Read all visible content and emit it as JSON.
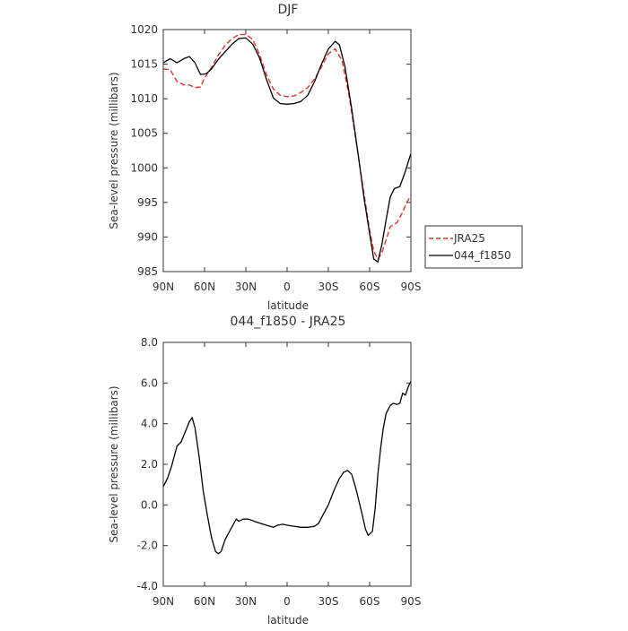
{
  "chart_data": [
    {
      "type": "line",
      "title": "DJF",
      "xlabel": "latitude",
      "ylabel": "Sea-level pressure (millibars)",
      "xlim": [
        -90,
        90
      ],
      "ylim": [
        985,
        1020
      ],
      "x_ticks": [
        -90,
        -60,
        -30,
        0,
        30,
        60,
        90
      ],
      "x_tick_labels": [
        "90N",
        "60N",
        "30N",
        "0",
        "30S",
        "60S",
        "90S"
      ],
      "y_ticks": [
        985,
        990,
        995,
        1000,
        1005,
        1010,
        1015,
        1020
      ],
      "y_tick_labels": [
        "985",
        "990",
        "995",
        "1000",
        "1005",
        "1010",
        "1015",
        "1020"
      ],
      "grid": false,
      "legend_position": "right",
      "series": [
        {
          "name": "JRA25",
          "style": "dashed",
          "color": "#e8312f",
          "points": [
            [
              -90,
              1014.3
            ],
            [
              -85,
              1014.2
            ],
            [
              -80,
              1012.5
            ],
            [
              -75,
              1012.0
            ],
            [
              -71,
              1012.0
            ],
            [
              -67,
              1011.6
            ],
            [
              -63,
              1011.7
            ],
            [
              -60,
              1013.0
            ],
            [
              -55,
              1014.5
            ],
            [
              -50,
              1016.3
            ],
            [
              -45,
              1017.7
            ],
            [
              -40,
              1018.7
            ],
            [
              -35,
              1019.3
            ],
            [
              -30,
              1019.3
            ],
            [
              -25,
              1018.6
            ],
            [
              -20,
              1016.4
            ],
            [
              -15,
              1013.5
            ],
            [
              -10,
              1011.4
            ],
            [
              -5,
              1010.5
            ],
            [
              0,
              1010.3
            ],
            [
              5,
              1010.4
            ],
            [
              10,
              1010.9
            ],
            [
              15,
              1011.6
            ],
            [
              20,
              1012.9
            ],
            [
              25,
              1014.6
            ],
            [
              30,
              1016.5
            ],
            [
              35,
              1017.2
            ],
            [
              40,
              1015.5
            ],
            [
              45,
              1010.5
            ],
            [
              50,
              1004.0
            ],
            [
              55,
              997.5
            ],
            [
              60,
              991.0
            ],
            [
              63,
              988.0
            ],
            [
              66,
              986.8
            ],
            [
              69,
              987.8
            ],
            [
              72,
              989.6
            ],
            [
              75,
              991.5
            ],
            [
              80,
              992.1
            ],
            [
              84,
              993.6
            ],
            [
              87,
              995.0
            ],
            [
              90,
              996.0
            ]
          ]
        },
        {
          "name": "044_f1850",
          "style": "solid",
          "color": "#000000",
          "points": [
            [
              -90,
              1015.2
            ],
            [
              -85,
              1015.8
            ],
            [
              -80,
              1015.2
            ],
            [
              -75,
              1015.8
            ],
            [
              -71,
              1016.1
            ],
            [
              -67,
              1015.2
            ],
            [
              -63,
              1013.5
            ],
            [
              -59,
              1013.6
            ],
            [
              -55,
              1014.3
            ],
            [
              -50,
              1015.7
            ],
            [
              -45,
              1016.8
            ],
            [
              -40,
              1017.9
            ],
            [
              -35,
              1018.7
            ],
            [
              -30,
              1018.8
            ],
            [
              -25,
              1017.9
            ],
            [
              -20,
              1015.9
            ],
            [
              -15,
              1012.8
            ],
            [
              -10,
              1010.1
            ],
            [
              -5,
              1009.3
            ],
            [
              0,
              1009.2
            ],
            [
              5,
              1009.3
            ],
            [
              10,
              1009.6
            ],
            [
              15,
              1010.5
            ],
            [
              20,
              1012.5
            ],
            [
              25,
              1015.0
            ],
            [
              30,
              1017.2
            ],
            [
              35,
              1018.3
            ],
            [
              38,
              1017.8
            ],
            [
              42,
              1014.7
            ],
            [
              47,
              1008.5
            ],
            [
              52,
              1001.5
            ],
            [
              56,
              995.5
            ],
            [
              60,
              990.5
            ],
            [
              63,
              986.8
            ],
            [
              66,
              986.4
            ],
            [
              69,
              989.0
            ],
            [
              72,
              992.5
            ],
            [
              75,
              995.8
            ],
            [
              78,
              997.0
            ],
            [
              82,
              997.3
            ],
            [
              86,
              999.5
            ],
            [
              90,
              1002.1
            ]
          ]
        }
      ]
    },
    {
      "type": "line",
      "title": "044_f1850 - JRA25",
      "xlabel": "latitude",
      "ylabel": "Sea-level pressure (millibars)",
      "xlim": [
        -90,
        90
      ],
      "ylim": [
        -4.0,
        8.0
      ],
      "x_ticks": [
        -90,
        -60,
        -30,
        0,
        30,
        60,
        90
      ],
      "x_tick_labels": [
        "90N",
        "60N",
        "30N",
        "0",
        "30S",
        "60S",
        "90S"
      ],
      "y_ticks": [
        -4.0,
        -2.0,
        0.0,
        2.0,
        4.0,
        6.0,
        8.0
      ],
      "y_tick_labels": [
        "-4.0",
        "-2.0",
        "0.0",
        "2.0",
        "4.0",
        "6.0",
        "8.0"
      ],
      "grid": false,
      "series": [
        {
          "style": "solid",
          "color": "#000000",
          "points": [
            [
              -90,
              0.9
            ],
            [
              -87,
              1.3
            ],
            [
              -84,
              1.9
            ],
            [
              -80,
              2.9
            ],
            [
              -77,
              3.1
            ],
            [
              -74,
              3.6
            ],
            [
              -71,
              4.1
            ],
            [
              -69,
              4.3
            ],
            [
              -67,
              3.8
            ],
            [
              -64,
              2.4
            ],
            [
              -61,
              0.7
            ],
            [
              -58,
              -0.5
            ],
            [
              -55,
              -1.6
            ],
            [
              -52,
              -2.3
            ],
            [
              -50,
              -2.4
            ],
            [
              -48,
              -2.3
            ],
            [
              -45,
              -1.7
            ],
            [
              -41,
              -1.2
            ],
            [
              -37,
              -0.7
            ],
            [
              -35,
              -0.8
            ],
            [
              -32,
              -0.7
            ],
            [
              -28,
              -0.7
            ],
            [
              -22,
              -0.85
            ],
            [
              -15,
              -1.0
            ],
            [
              -10,
              -1.1
            ],
            [
              -7,
              -1.0
            ],
            [
              -3,
              -0.95
            ],
            [
              0,
              -1.0
            ],
            [
              5,
              -1.05
            ],
            [
              10,
              -1.1
            ],
            [
              15,
              -1.1
            ],
            [
              20,
              -1.05
            ],
            [
              23,
              -0.9
            ],
            [
              26,
              -0.5
            ],
            [
              30,
              0.0
            ],
            [
              34,
              0.7
            ],
            [
              38,
              1.3
            ],
            [
              41,
              1.6
            ],
            [
              44,
              1.7
            ],
            [
              47,
              1.5
            ],
            [
              50,
              0.8
            ],
            [
              54,
              -0.3
            ],
            [
              57,
              -1.2
            ],
            [
              59,
              -1.5
            ],
            [
              62,
              -1.3
            ],
            [
              64,
              -0.2
            ],
            [
              66,
              1.5
            ],
            [
              68,
              2.8
            ],
            [
              70,
              3.8
            ],
            [
              72,
              4.5
            ],
            [
              75,
              4.9
            ],
            [
              77,
              5.0
            ],
            [
              80,
              4.95
            ],
            [
              82,
              5.0
            ],
            [
              84,
              5.5
            ],
            [
              86,
              5.4
            ],
            [
              88,
              5.8
            ],
            [
              90,
              6.1
            ]
          ]
        }
      ]
    }
  ]
}
